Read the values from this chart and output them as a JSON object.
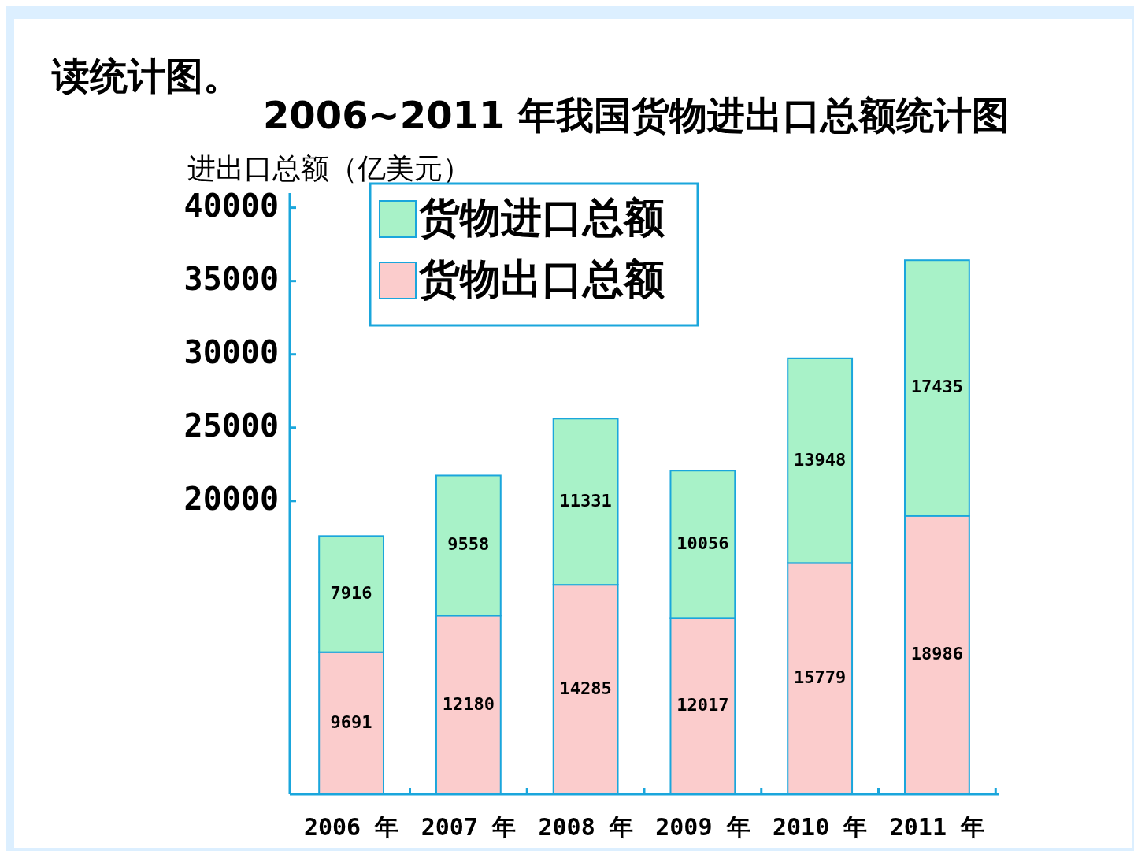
{
  "chart_data": {
    "type": "bar",
    "title": "2006~2011 年我国货物进出口总额统计图",
    "ylabel": "进出口总额（亿美元）",
    "annotations": [
      "读统计图。"
    ],
    "categories": [
      "2006 年",
      "2007 年",
      "2008 年",
      "2009 年",
      "2010 年",
      "2011 年"
    ],
    "stacked": true,
    "data_labels": true,
    "legend": "top left",
    "ylim": [
      0,
      41000
    ],
    "yticks": [
      20000,
      25000,
      30000,
      35000,
      40000
    ],
    "series": [
      {
        "name": "货物出口总额",
        "color": "#fbcccc",
        "values": [
          9691,
          12180,
          14285,
          12017,
          15779,
          18986
        ]
      },
      {
        "name": "货物进口总额",
        "color": "#a8f2c8",
        "values": [
          7916,
          9558,
          11331,
          10056,
          13948,
          17435
        ]
      }
    ]
  }
}
